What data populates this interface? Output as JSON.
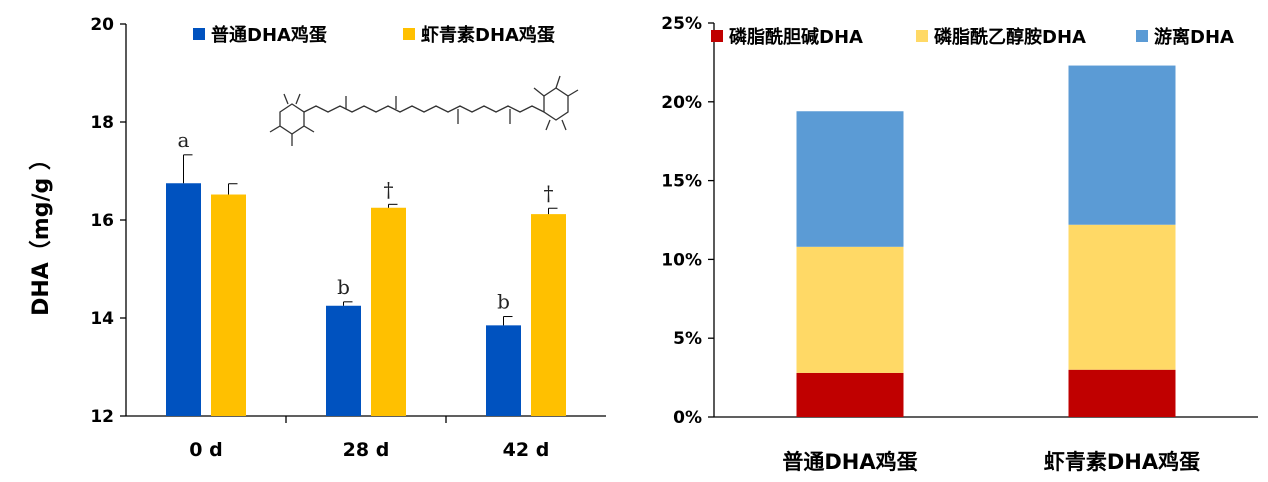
{
  "chart_data": [
    {
      "type": "bar",
      "ylabel": "DHA（mg/g ）",
      "ylim": [
        12,
        20
      ],
      "yticks": [
        "12",
        "14",
        "16",
        "18",
        "20"
      ],
      "categories": [
        "0 d",
        "28 d",
        "42  d"
      ],
      "series": [
        {
          "name": "普通DHA鸡蛋",
          "color": "#0052BF",
          "values": [
            16.75,
            14.25,
            13.85
          ],
          "errors": [
            0.58,
            0.08,
            0.18
          ]
        },
        {
          "name": "虾青素DHA鸡蛋",
          "color": "#FFC000",
          "values": [
            16.52,
            16.25,
            16.12
          ],
          "errors": [
            0.22,
            0.07,
            0.12
          ]
        }
      ],
      "annotations_series0": [
        "a",
        "b",
        "b"
      ],
      "annotations_series1": [
        "",
        "†",
        "†"
      ],
      "legend": "top",
      "inset_image": "astaxanthin-structure"
    },
    {
      "type": "bar",
      "stacked": true,
      "ylim": [
        0,
        0.25
      ],
      "yticks": [
        "0%",
        "5%",
        "10%",
        "15%",
        "20%",
        "25%"
      ],
      "categories": [
        "普通DHA鸡蛋",
        "虾青素DHA鸡蛋"
      ],
      "series": [
        {
          "name": "磷脂酰胆碱DHA",
          "color": "#C00000",
          "values": [
            0.028,
            0.03
          ]
        },
        {
          "name": "磷脂酰乙醇胺DHA",
          "color": "#FFD966",
          "values": [
            0.08,
            0.092
          ]
        },
        {
          "name": "游离DHA",
          "color": "#5B9BD5",
          "values": [
            0.086,
            0.101
          ]
        }
      ],
      "legend": "top"
    }
  ]
}
